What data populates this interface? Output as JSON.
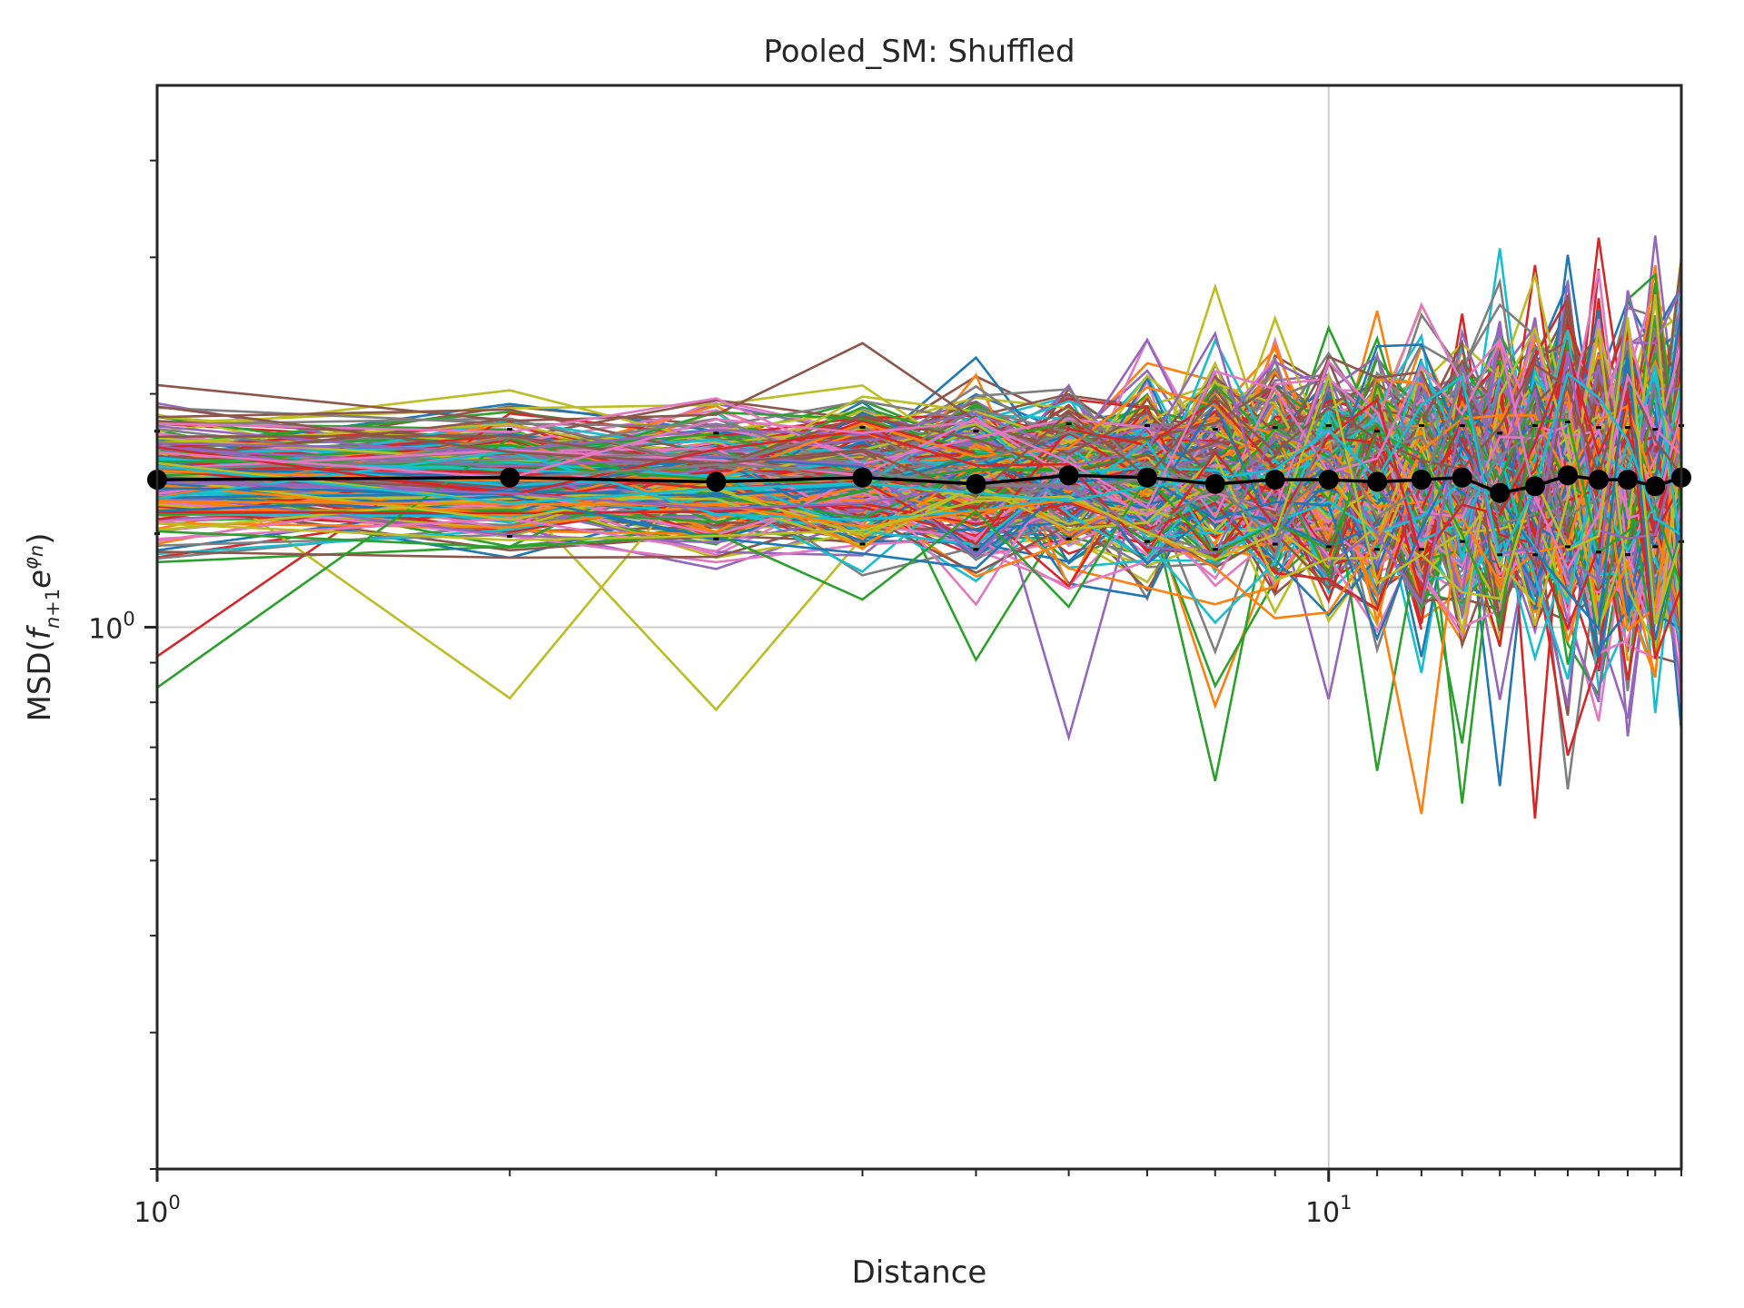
{
  "chart_data": {
    "type": "line",
    "title": "Pooled_SM: Shuffled",
    "xlabel": "Distance",
    "ylabel": "MSD(f n+1 e^φn)",
    "x_scale": "log",
    "y_scale": "log",
    "xlim": [
      1,
      20
    ],
    "ylim": [
      0.2,
      5
    ],
    "x_ticks": [
      {
        "base": "10",
        "exp": "0",
        "value": 1
      },
      {
        "base": "10",
        "exp": "1",
        "value": 10
      }
    ],
    "y_ticks": [
      {
        "base": "10",
        "exp": "0",
        "value": 1
      }
    ],
    "grid": true,
    "background_series": {
      "description_count": 300,
      "palette": [
        "#1f77b4",
        "#ff7f0e",
        "#2ca02c",
        "#d62728",
        "#9467bd",
        "#8c564b",
        "#e377c2",
        "#7f7f7f",
        "#bcbd22",
        "#17becf"
      ]
    },
    "mean_series": {
      "color": "#000000",
      "x": [
        1,
        2,
        3,
        4,
        5,
        6,
        7,
        8,
        9,
        10,
        11,
        12,
        13,
        14,
        15,
        16,
        17,
        18,
        19,
        20
      ],
      "y": [
        1.55,
        1.56,
        1.54,
        1.56,
        1.53,
        1.57,
        1.56,
        1.53,
        1.55,
        1.55,
        1.54,
        1.55,
        1.56,
        1.49,
        1.52,
        1.57,
        1.55,
        1.55,
        1.52,
        1.56
      ],
      "upper": [
        1.79,
        1.8,
        1.78,
        1.81,
        1.79,
        1.83,
        1.82,
        1.8,
        1.81,
        1.82,
        1.79,
        1.82,
        1.82,
        1.78,
        1.82,
        1.84,
        1.81,
        1.81,
        1.8,
        1.82
      ],
      "lower": [
        1.32,
        1.31,
        1.3,
        1.28,
        1.26,
        1.3,
        1.29,
        1.26,
        1.28,
        1.27,
        1.26,
        1.26,
        1.29,
        1.24,
        1.24,
        1.27,
        1.25,
        1.24,
        1.27,
        1.29
      ]
    }
  }
}
